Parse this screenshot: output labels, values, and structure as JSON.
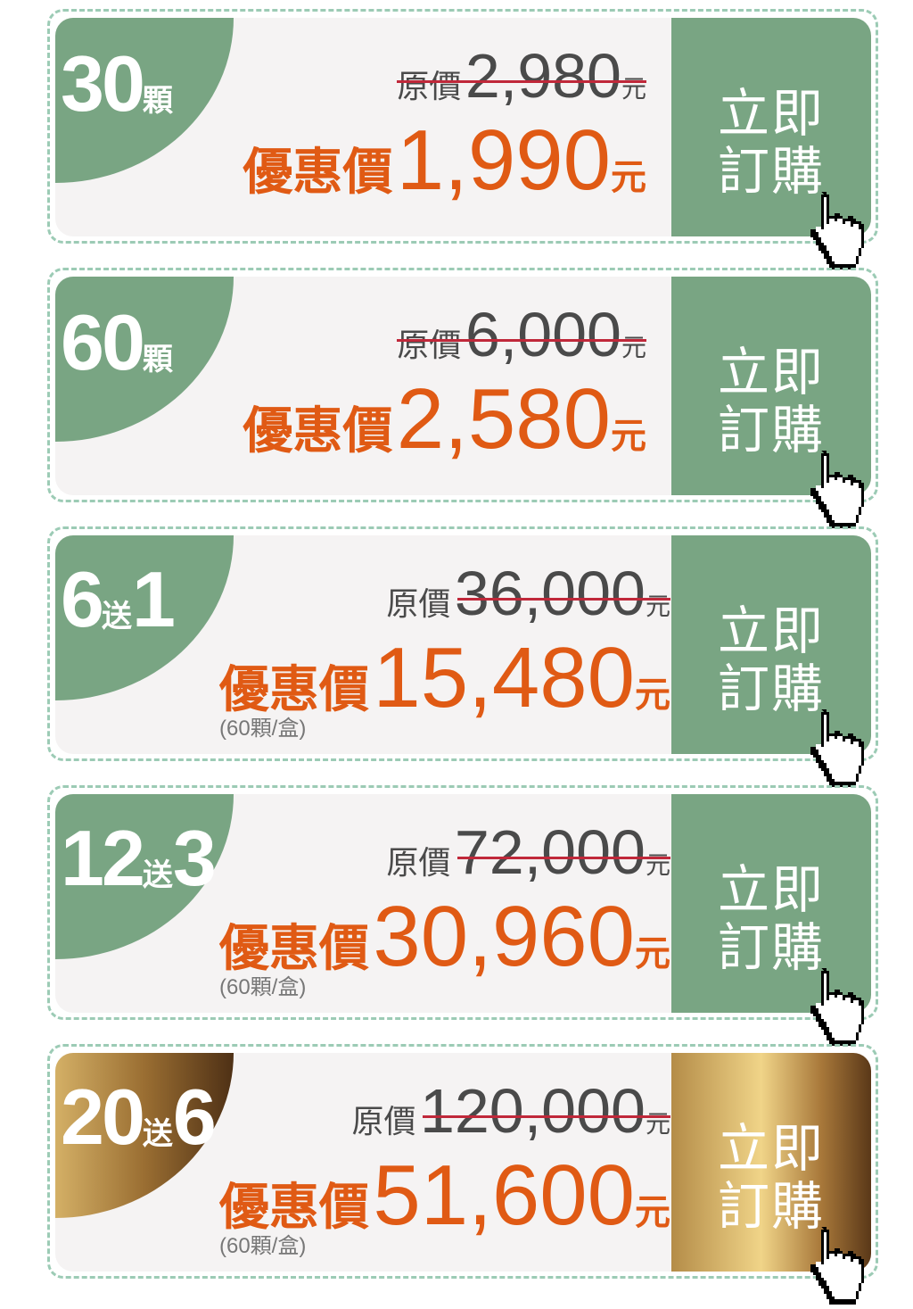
{
  "colors": {
    "green": "#79a583",
    "orange": "#e05a14",
    "strike": "#c0283a",
    "dash": "#9ccbb5",
    "gold": "#f0d488"
  },
  "offers": [
    {
      "qty": "30",
      "qty_unit": "顆",
      "orig_label": "原價",
      "orig_price": "2,980",
      "orig_unit": "元",
      "sale_label": "優惠價",
      "sale_price": "1,990",
      "sale_unit": "元",
      "note": "",
      "button_line1": "立即",
      "button_line2": "訂購",
      "style": "green",
      "icon": "hand-pointer-icon"
    },
    {
      "qty": "60",
      "qty_unit": "顆",
      "orig_label": "原價",
      "orig_price": "6,000",
      "orig_unit": "元",
      "sale_label": "優惠價",
      "sale_price": "2,580",
      "sale_unit": "元",
      "note": "",
      "button_line1": "立即",
      "button_line2": "訂購",
      "style": "green",
      "icon": "hand-pointer-icon"
    },
    {
      "qty": "6",
      "qty_unit": "送",
      "qty2": "1",
      "orig_label": "原價",
      "orig_price": "36,000",
      "orig_unit": "元",
      "sale_label": "優惠價",
      "sale_price": "15,480",
      "sale_unit": "元",
      "note": "(60顆/盒)",
      "button_line1": "立即",
      "button_line2": "訂購",
      "style": "green",
      "icon": "hand-pointer-icon"
    },
    {
      "qty": "12",
      "qty_unit": "送",
      "qty2": "3",
      "orig_label": "原價",
      "orig_price": "72,000",
      "orig_unit": "元",
      "sale_label": "優惠價",
      "sale_price": "30,960",
      "sale_unit": "元",
      "note": "(60顆/盒)",
      "button_line1": "立即",
      "button_line2": "訂購",
      "style": "green",
      "icon": "hand-pointer-icon"
    },
    {
      "qty": "20",
      "qty_unit": "送",
      "qty2": "6",
      "orig_label": "原價",
      "orig_price": "120,000",
      "orig_unit": "元",
      "sale_label": "優惠價",
      "sale_price": "51,600",
      "sale_unit": "元",
      "note": "(60顆/盒)",
      "button_line1": "立即",
      "button_line2": "訂購",
      "style": "gold",
      "icon": "hand-pointer-icon"
    }
  ]
}
